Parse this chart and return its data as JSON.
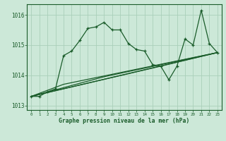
{
  "title": "Graphe pression niveau de la mer (hPa)",
  "background_color": "#cce8d8",
  "grid_color": "#aacfba",
  "line_color": "#1a5c2a",
  "xlim": [
    -0.5,
    23.5
  ],
  "ylim": [
    1012.85,
    1016.35
  ],
  "yticks": [
    1013,
    1014,
    1015,
    1016
  ],
  "xticks": [
    0,
    1,
    2,
    3,
    4,
    5,
    6,
    7,
    8,
    9,
    10,
    11,
    12,
    13,
    14,
    15,
    16,
    17,
    18,
    19,
    20,
    21,
    22,
    23
  ],
  "series_main": {
    "x": [
      0,
      1,
      2,
      3,
      4,
      5,
      6,
      7,
      8,
      9,
      10,
      11,
      12,
      13,
      14,
      15,
      16,
      17,
      18,
      19,
      20,
      21,
      22,
      23
    ],
    "y": [
      1013.3,
      1013.3,
      1013.45,
      1013.55,
      1014.65,
      1014.8,
      1015.15,
      1015.55,
      1015.6,
      1015.75,
      1015.5,
      1015.5,
      1015.05,
      1014.85,
      1014.8,
      1014.35,
      1014.3,
      1013.85,
      1014.3,
      1015.2,
      1015.0,
      1016.15,
      1015.05,
      1014.75
    ]
  },
  "series_trend": [
    {
      "x": [
        0,
        23
      ],
      "y": [
        1013.3,
        1014.75
      ]
    },
    {
      "x": [
        0,
        4,
        23
      ],
      "y": [
        1013.3,
        1013.7,
        1014.75
      ]
    },
    {
      "x": [
        0,
        9,
        23
      ],
      "y": [
        1013.3,
        1013.95,
        1014.75
      ]
    },
    {
      "x": [
        0,
        16,
        23
      ],
      "y": [
        1013.3,
        1014.3,
        1014.75
      ]
    }
  ]
}
